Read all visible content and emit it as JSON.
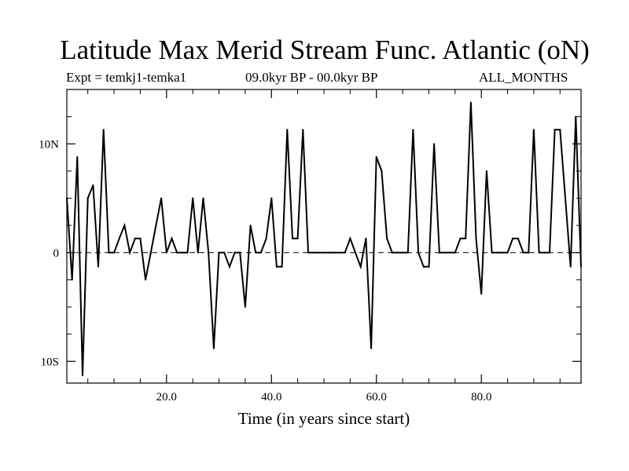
{
  "chart_data": {
    "type": "line",
    "title": "Latitude Max Merid Stream Func. Atlantic (oN)",
    "subtitle_left": "Expt = temkj1-temka1",
    "subtitle_center": "09.0kyr BP - 00.0kyr BP",
    "subtitle_right": "ALL_MONTHS",
    "xlabel": "Time (in years since start)",
    "ylabel": "",
    "xlim": [
      1,
      99
    ],
    "ylim": [
      -12,
      15
    ],
    "xticks": [
      {
        "value": 20,
        "label": "20.0"
      },
      {
        "value": 40,
        "label": "40.0"
      },
      {
        "value": 60,
        "label": "60.0"
      },
      {
        "value": 80,
        "label": "80.0"
      }
    ],
    "yticks": [
      {
        "value": 10,
        "label": "10N"
      },
      {
        "value": 0,
        "label": "0"
      },
      {
        "value": -10,
        "label": "10S"
      }
    ],
    "zero_line": "dashed",
    "series": [
      {
        "name": "Latitude Max Merid Stream Func. Atlantic",
        "x": [
          1,
          2,
          3,
          4,
          5,
          6,
          7,
          8,
          9,
          10,
          11,
          12,
          13,
          14,
          15,
          16,
          17,
          18,
          19,
          20,
          21,
          22,
          23,
          24,
          25,
          26,
          27,
          28,
          29,
          30,
          31,
          32,
          33,
          34,
          35,
          36,
          37,
          38,
          39,
          40,
          41,
          42,
          43,
          44,
          45,
          46,
          47,
          48,
          49,
          50,
          51,
          52,
          53,
          54,
          55,
          56,
          57,
          58,
          59,
          60,
          61,
          62,
          63,
          64,
          65,
          66,
          67,
          68,
          69,
          70,
          71,
          72,
          73,
          74,
          75,
          76,
          77,
          78,
          79,
          80,
          81,
          82,
          83,
          84,
          85,
          86,
          87,
          88,
          89,
          90,
          91,
          92,
          93,
          94,
          95,
          96,
          97,
          98,
          99
        ],
        "values": [
          5,
          -2.5,
          8.8,
          -11.3,
          5,
          6.2,
          -1.3,
          11.3,
          0,
          0,
          1.3,
          2.5,
          0,
          1.3,
          1.3,
          -2.5,
          0,
          2.5,
          5,
          0,
          1.3,
          0,
          0,
          0,
          5,
          0,
          5,
          0,
          -8.8,
          0,
          0,
          -1.3,
          0,
          0,
          -5,
          2.5,
          0,
          0,
          1.3,
          5,
          -1.3,
          -1.3,
          11.3,
          1.3,
          1.3,
          11.3,
          0,
          0,
          0,
          0,
          0,
          0,
          0,
          0,
          1.3,
          0,
          -1.3,
          1.3,
          -8.8,
          8.8,
          7.5,
          1.3,
          0,
          0,
          0,
          0,
          11.3,
          0,
          -1.3,
          -1.3,
          10,
          0,
          0,
          0,
          0,
          1.3,
          1.3,
          13.8,
          1.3,
          -3.8,
          7.5,
          0,
          0,
          0,
          0,
          1.3,
          1.3,
          0,
          0,
          11.3,
          0,
          0,
          0,
          11.3,
          11.3,
          5,
          -1.3,
          12.5,
          -1.3
        ]
      }
    ]
  }
}
